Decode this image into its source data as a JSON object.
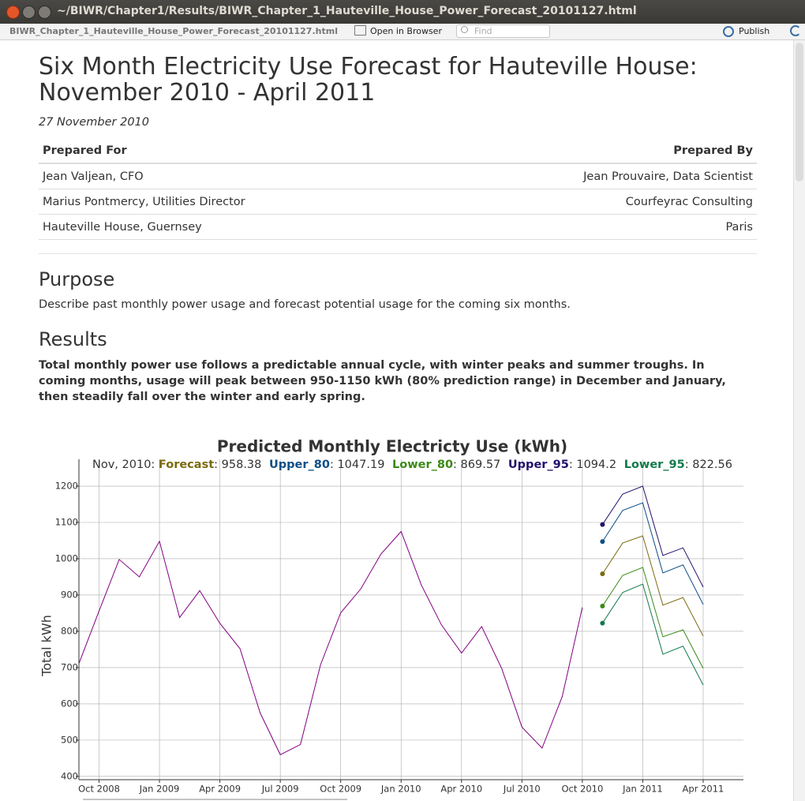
{
  "window": {
    "title": "~/BIWR/Chapter1/Results/BIWR_Chapter_1_Hauteville_House_Power_Forecast_20101127.html"
  },
  "toolbar": {
    "file": "BIWR_Chapter_1_Hauteville_House_Power_Forecast_20101127.html",
    "open_in_browser": "Open in Browser",
    "find_placeholder": "Find",
    "publish": "Publish"
  },
  "document": {
    "title": "Six Month Electricity Use Forecast for Hauteville House: November 2010 - April 2011",
    "date": "27 November 2010",
    "table": {
      "headers": [
        "Prepared For",
        "Prepared By"
      ],
      "rows": [
        [
          "Jean Valjean, CFO",
          "Jean Prouvaire, Data Scientist"
        ],
        [
          "Marius Pontmercy, Utilities Director",
          "Courfeyrac Consulting"
        ],
        [
          "Hauteville House, Guernsey",
          "Paris"
        ]
      ]
    },
    "purpose": {
      "heading": "Purpose",
      "text": "Describe past monthly power usage and forecast potential usage for the coming six months."
    },
    "results": {
      "heading": "Results",
      "text": "Total monthly power use follows a predictable annual cycle, with winter peaks and summer troughs. In coming months, usage will peak between 950-1150 kWh (80% prediction range) in December and January, then steadily fall over the winter and early spring."
    }
  },
  "chart_data": {
    "type": "line",
    "title": "Predicted Monthly Electricty Use (kWh)",
    "legend_date": "Nov, 2010:",
    "y_label": "Total kWh",
    "grid": true,
    "x": [
      "2008-09",
      "2008-10",
      "2008-11",
      "2008-12",
      "2009-01",
      "2009-02",
      "2009-03",
      "2009-04",
      "2009-05",
      "2009-06",
      "2009-07",
      "2009-08",
      "2009-09",
      "2009-10",
      "2009-11",
      "2009-12",
      "2010-01",
      "2010-02",
      "2010-03",
      "2010-04",
      "2010-05",
      "2010-06",
      "2010-07",
      "2010-08",
      "2010-09",
      "2010-10",
      "2010-11",
      "2010-12",
      "2011-01",
      "2011-02",
      "2011-03",
      "2011-04"
    ],
    "xlim": [
      "2008-09",
      "2011-06"
    ],
    "xticks": [
      {
        "value": "2008-10",
        "label": "Oct 2008"
      },
      {
        "value": "2009-01",
        "label": "Jan 2009"
      },
      {
        "value": "2009-04",
        "label": "Apr 2009"
      },
      {
        "value": "2009-07",
        "label": "Jul 2009"
      },
      {
        "value": "2009-10",
        "label": "Oct 2009"
      },
      {
        "value": "2010-01",
        "label": "Jan 2010"
      },
      {
        "value": "2010-04",
        "label": "Apr 2010"
      },
      {
        "value": "2010-07",
        "label": "Jul 2010"
      },
      {
        "value": "2010-10",
        "label": "Oct 2010"
      },
      {
        "value": "2011-01",
        "label": "Jan 2011"
      },
      {
        "value": "2011-04",
        "label": "Apr 2011"
      }
    ],
    "ylim": [
      391,
      1274
    ],
    "yticks": [
      400,
      500,
      600,
      700,
      800,
      900,
      1000,
      1100,
      1200
    ],
    "series": [
      {
        "color": "#800080",
        "values": [
          711,
          856,
          998,
          950,
          1048,
          838,
          912,
          822,
          752,
          575,
          460,
          488,
          708,
          851,
          917,
          1013,
          1075,
          928,
          818,
          740,
          813,
          697,
          536,
          478,
          620,
          866,
          null,
          null,
          null,
          null,
          null,
          null
        ]
      },
      {
        "name": "Forecast",
        "color": "#7a6a10",
        "values": [
          null,
          null,
          null,
          null,
          null,
          null,
          null,
          null,
          null,
          null,
          null,
          null,
          null,
          null,
          null,
          null,
          null,
          null,
          null,
          null,
          null,
          null,
          null,
          null,
          null,
          null,
          958.38,
          1043,
          1063,
          872,
          893,
          787
        ]
      },
      {
        "name": "Upper_80",
        "color": "#0f4f86",
        "values": [
          null,
          null,
          null,
          null,
          null,
          null,
          null,
          null,
          null,
          null,
          null,
          null,
          null,
          null,
          null,
          null,
          null,
          null,
          null,
          null,
          null,
          null,
          null,
          null,
          null,
          null,
          1047.19,
          1133,
          1154,
          961,
          983,
          874
        ]
      },
      {
        "name": "Lower_80",
        "color": "#3a8a18",
        "values": [
          null,
          null,
          null,
          null,
          null,
          null,
          null,
          null,
          null,
          null,
          null,
          null,
          null,
          null,
          null,
          null,
          null,
          null,
          null,
          null,
          null,
          null,
          null,
          null,
          null,
          null,
          869.57,
          954,
          976,
          785,
          804,
          698
        ]
      },
      {
        "name": "Upper_95",
        "color": "#22106a",
        "values": [
          null,
          null,
          null,
          null,
          null,
          null,
          null,
          null,
          null,
          null,
          null,
          null,
          null,
          null,
          null,
          null,
          null,
          null,
          null,
          null,
          null,
          null,
          null,
          null,
          null,
          null,
          1094.2,
          1178,
          1200,
          1009,
          1030,
          922
        ]
      },
      {
        "name": "Lower_95",
        "color": "#137a4c",
        "values": [
          null,
          null,
          null,
          null,
          null,
          null,
          null,
          null,
          null,
          null,
          null,
          null,
          null,
          null,
          null,
          null,
          null,
          null,
          null,
          null,
          null,
          null,
          null,
          null,
          null,
          null,
          822.56,
          907,
          930,
          737,
          759,
          652
        ]
      }
    ]
  }
}
